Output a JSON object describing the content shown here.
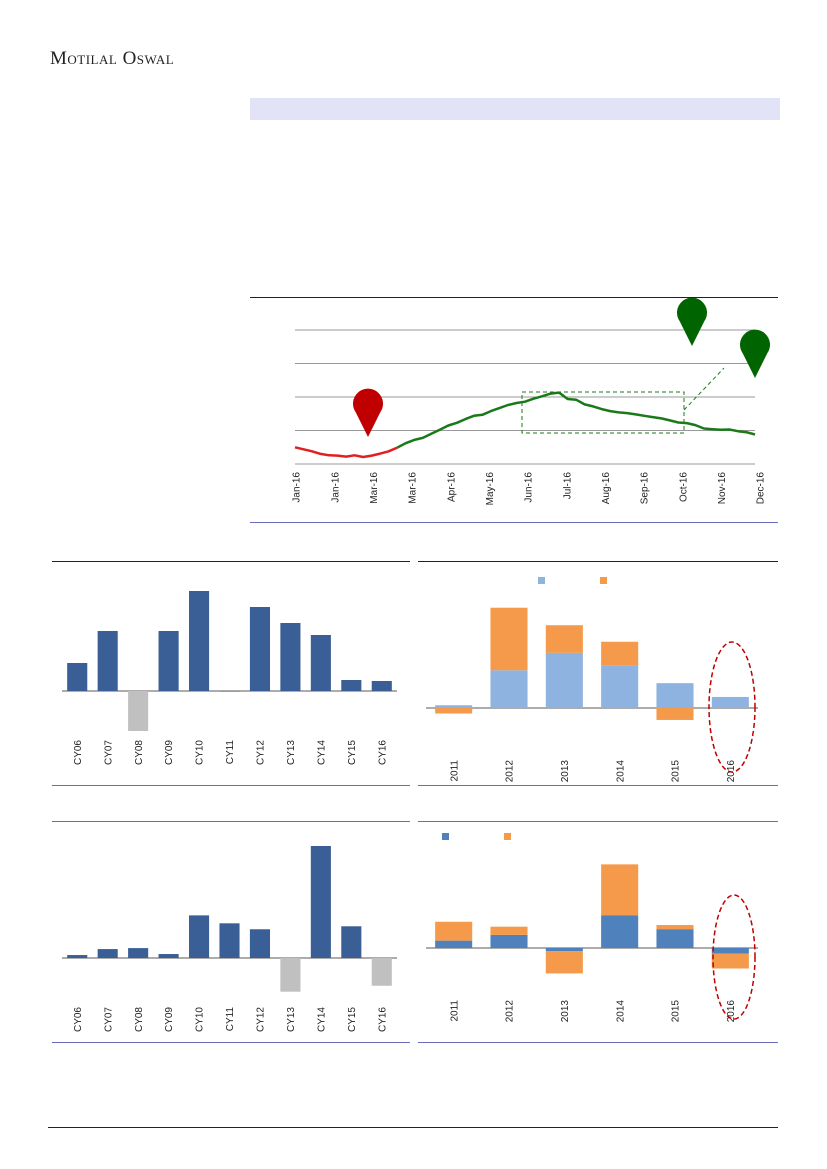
{
  "header": {
    "brand": "Motilal Oswal"
  },
  "colors": {
    "red": "#e02020",
    "green": "#1a7a1a",
    "navy": "#3a5e96",
    "gray": "#c0c0c0",
    "lightblue": "#8fb3e0",
    "orange": "#f59a4a",
    "blue2": "#4f81bd",
    "marker_red": "#c00000",
    "marker_green": "#006400"
  },
  "charts": {
    "line": {
      "chart_data": {
        "type": "line",
        "x": [
          "Jan-16",
          "Jan-16",
          "Mar-16",
          "Mar-16",
          "Apr-16",
          "May-16",
          "Jun-16",
          "Jul-16",
          "Aug-16",
          "Sep-16",
          "Oct-16",
          "Nov-16",
          "Dec-16"
        ],
        "series_red": [
          0.5,
          0.44,
          0.38,
          0.3,
          0.26,
          0.25,
          0.22,
          0.26,
          0.21,
          0.25,
          0.31,
          0.38,
          0.49
        ],
        "series_green": [
          0.49,
          0.62,
          0.72,
          0.78,
          0.9,
          1.02,
          1.15,
          1.23,
          1.34,
          1.44,
          1.47,
          1.58,
          1.67,
          1.76,
          1.82,
          1.86,
          1.95,
          2.02,
          2.1,
          2.13,
          1.94,
          1.92,
          1.78,
          1.72,
          1.64,
          1.58,
          1.54,
          1.52,
          1.48,
          1.44,
          1.4,
          1.36,
          1.3,
          1.24,
          1.22,
          1.16,
          1.06,
          1.04,
          1.02,
          1.03,
          0.98,
          0.95,
          0.88
        ],
        "gridlines": 4
      }
    },
    "bar1": {
      "chart_data": {
        "type": "bar",
        "categories": [
          "CY06",
          "CY07",
          "CY08",
          "CY09",
          "CY10",
          "CY11",
          "CY12",
          "CY13",
          "CY14",
          "CY15",
          "CY16"
        ],
        "values": [
          28,
          60,
          -40,
          60,
          100,
          0,
          84,
          68,
          56,
          11,
          10
        ]
      }
    },
    "bar2": {
      "chart_data": {
        "type": "bar",
        "categories": [
          "CY06",
          "CY07",
          "CY08",
          "CY09",
          "CY10",
          "CY11",
          "CY12",
          "CY13",
          "CY14",
          "CY15",
          "CY16"
        ],
        "values": [
          3,
          9,
          10,
          4,
          43,
          35,
          29,
          -34,
          113,
          32,
          -28
        ]
      }
    },
    "stack1": {
      "chart_data": {
        "type": "bar",
        "stacked": true,
        "categories": [
          "2011",
          "2012",
          "2013",
          "2014",
          "2015",
          "2016"
        ],
        "series": [
          {
            "values": [
              3,
              41,
              60,
              46,
              27,
              12
            ]
          },
          {
            "values": [
              -6,
              68,
              30,
              26,
              -13,
              0
            ]
          }
        ]
      }
    },
    "stack2": {
      "chart_data": {
        "type": "bar",
        "stacked": true,
        "categories": [
          "2011",
          "2012",
          "2013",
          "2014",
          "2015",
          "2016"
        ],
        "series": [
          {
            "values": [
              9,
              16,
              -4,
              40,
              23,
              -7
            ]
          },
          {
            "values": [
              23,
              10,
              -27,
              62,
              5,
              -18
            ]
          }
        ]
      }
    }
  }
}
